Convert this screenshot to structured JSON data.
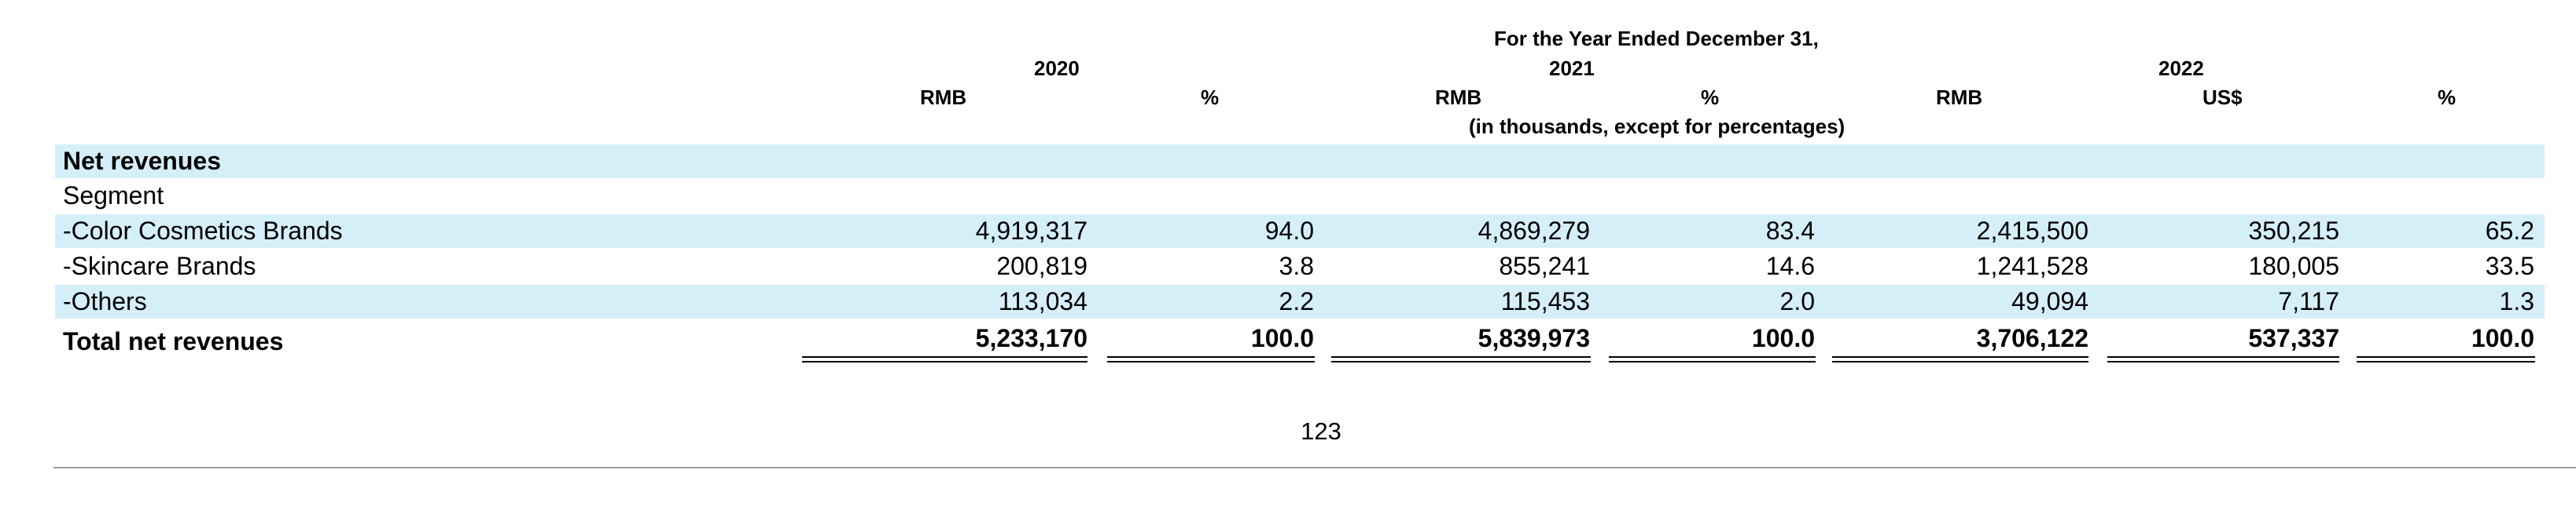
{
  "header": {
    "period_title": "For the Year Ended December 31,",
    "years": [
      "2020",
      "2021",
      "2022"
    ],
    "currencies": [
      "RMB",
      "%",
      "RMB",
      "%",
      "RMB",
      "US$",
      "%"
    ],
    "units_note": "(in thousands, except for percentages)"
  },
  "sections": {
    "net_revenues": "Net revenues",
    "segment": "Segment"
  },
  "rows": [
    {
      "label": "-Color Cosmetics Brands",
      "values": [
        "4,919,317",
        "94.0",
        "4,869,279",
        "83.4",
        "2,415,500",
        "350,215",
        "65.2"
      ]
    },
    {
      "label": "-Skincare Brands",
      "values": [
        "200,819",
        "3.8",
        "855,241",
        "14.6",
        "1,241,528",
        "180,005",
        "33.5"
      ]
    },
    {
      "label": "-Others",
      "values": [
        "113,034",
        "2.2",
        "115,453",
        "2.0",
        "49,094",
        "7,117",
        "1.3"
      ]
    }
  ],
  "total": {
    "label": "Total net revenues",
    "values": [
      "5,233,170",
      "100.0",
      "5,839,973",
      "100.0",
      "3,706,122",
      "537,337",
      "100.0"
    ]
  },
  "footer": {
    "page_number": "123"
  },
  "colors": {
    "row_band": "#d5eff9",
    "rule": "#9a9a9a"
  }
}
